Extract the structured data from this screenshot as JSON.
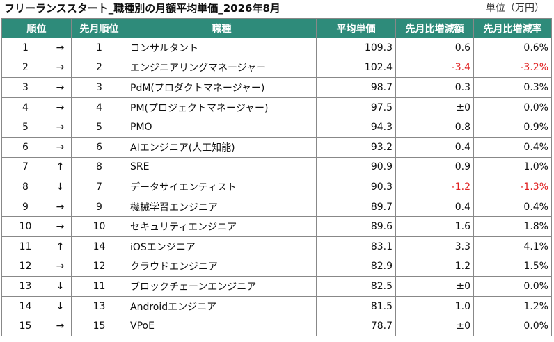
{
  "title": "フリーランススタート_職種別の月額平均単価_2026年8月",
  "unit": "単位（万円）",
  "columns": [
    "順位",
    "先月順位",
    "職種",
    "平均単価",
    "先月比増減額",
    "先月比増減率"
  ],
  "colors": {
    "header_bg": "#2e8b7a",
    "negative": "#e02020"
  },
  "rows": [
    {
      "rank": "1",
      "trend": "→",
      "prev_rank": "1",
      "job": "コンサルタント",
      "price": "109.3",
      "diff": "0.6",
      "rate": "0.6%",
      "negative": false
    },
    {
      "rank": "2",
      "trend": "→",
      "prev_rank": "2",
      "job": "エンジニアリングマネージャー",
      "price": "102.4",
      "diff": "-3.4",
      "rate": "-3.2%",
      "negative": true
    },
    {
      "rank": "3",
      "trend": "→",
      "prev_rank": "3",
      "job": "PdM(プロダクトマネージャー)",
      "price": "98.7",
      "diff": "0.3",
      "rate": "0.3%",
      "negative": false
    },
    {
      "rank": "4",
      "trend": "→",
      "prev_rank": "4",
      "job": "PM(プロジェクトマネージャー)",
      "price": "97.5",
      "diff": "±0",
      "rate": "0.0%",
      "negative": false
    },
    {
      "rank": "5",
      "trend": "→",
      "prev_rank": "5",
      "job": "PMO",
      "price": "94.3",
      "diff": "0.8",
      "rate": "0.9%",
      "negative": false
    },
    {
      "rank": "6",
      "trend": "→",
      "prev_rank": "6",
      "job": "AIエンジニア(人工知能)",
      "price": "93.2",
      "diff": "0.4",
      "rate": "0.4%",
      "negative": false
    },
    {
      "rank": "7",
      "trend": "↑",
      "prev_rank": "8",
      "job": "SRE",
      "price": "90.9",
      "diff": "0.9",
      "rate": "1.0%",
      "negative": false
    },
    {
      "rank": "8",
      "trend": "↓",
      "prev_rank": "7",
      "job": "データサイエンティスト",
      "price": "90.3",
      "diff": "-1.2",
      "rate": "-1.3%",
      "negative": true
    },
    {
      "rank": "9",
      "trend": "→",
      "prev_rank": "9",
      "job": "機械学習エンジニア",
      "price": "89.7",
      "diff": "0.4",
      "rate": "0.4%",
      "negative": false
    },
    {
      "rank": "10",
      "trend": "→",
      "prev_rank": "10",
      "job": "セキュリティエンジニア",
      "price": "89.6",
      "diff": "1.6",
      "rate": "1.8%",
      "negative": false
    },
    {
      "rank": "11",
      "trend": "↑",
      "prev_rank": "14",
      "job": "iOSエンジニア",
      "price": "83.1",
      "diff": "3.3",
      "rate": "4.1%",
      "negative": false
    },
    {
      "rank": "12",
      "trend": "→",
      "prev_rank": "12",
      "job": "クラウドエンジニア",
      "price": "82.9",
      "diff": "1.2",
      "rate": "1.5%",
      "negative": false
    },
    {
      "rank": "13",
      "trend": "↓",
      "prev_rank": "11",
      "job": "ブロックチェーンエンジニア",
      "price": "82.5",
      "diff": "±0",
      "rate": "0.0%",
      "negative": false
    },
    {
      "rank": "14",
      "trend": "↓",
      "prev_rank": "13",
      "job": "Androidエンジニア",
      "price": "81.5",
      "diff": "1.0",
      "rate": "1.2%",
      "negative": false
    },
    {
      "rank": "15",
      "trend": "→",
      "prev_rank": "15",
      "job": "VPoE",
      "price": "78.7",
      "diff": "±0",
      "rate": "0.0%",
      "negative": false
    }
  ]
}
